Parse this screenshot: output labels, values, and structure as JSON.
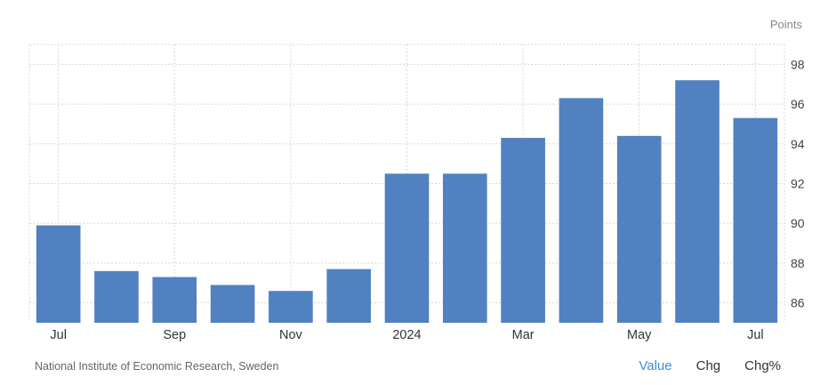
{
  "unit_label": "Points",
  "source": "National Institute of Economic Research, Sweden",
  "tabs": [
    {
      "label": "Value",
      "active": true
    },
    {
      "label": "Chg",
      "active": false
    },
    {
      "label": "Chg%",
      "active": false
    }
  ],
  "colors": {
    "bar": "#5181c0",
    "grid": "#d8d8d8",
    "active_tab": "#3b8fd6"
  },
  "chart_data": {
    "type": "bar",
    "months": [
      "Jul 2023",
      "Aug 2023",
      "Sep 2023",
      "Oct 2023",
      "Nov 2023",
      "Dec 2023",
      "Jan 2024",
      "Feb 2024",
      "Mar 2024",
      "Apr 2024",
      "May 2024",
      "Jun 2024",
      "Jul 2024"
    ],
    "tick_labels": [
      "Jul",
      "",
      "Sep",
      "",
      "Nov",
      "",
      "2024",
      "",
      "Mar",
      "",
      "May",
      "",
      "Jul"
    ],
    "values": [
      89.9,
      87.6,
      87.3,
      86.9,
      86.6,
      87.7,
      92.5,
      92.5,
      94.3,
      96.3,
      94.4,
      97.2,
      95.3
    ],
    "ylim": [
      85,
      99
    ],
    "yticks": [
      86,
      88,
      90,
      92,
      94,
      96,
      98
    ],
    "grid": true
  }
}
